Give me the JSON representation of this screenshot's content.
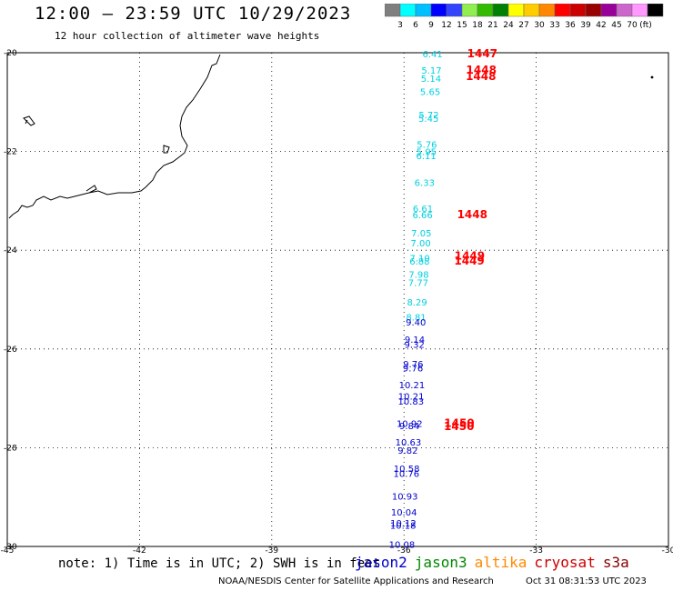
{
  "title": "12:00 – 23:59 UTC 10/29/2023",
  "subtitle": "12 hour collection of altimeter wave heights",
  "scale": {
    "colors": [
      "#7f7f7f",
      "#00ffff",
      "#00bfff",
      "#0000ff",
      "#3344ff",
      "#90ee50",
      "#33bb00",
      "#008000",
      "#ffff00",
      "#ffcc00",
      "#ff8800",
      "#ff0000",
      "#cc0000",
      "#990000",
      "#990099",
      "#cc66cc",
      "#ff99ff",
      "#000000"
    ],
    "labels": [
      "3",
      "6",
      "9",
      "12",
      "15",
      "18",
      "21",
      "24",
      "27",
      "30",
      "33",
      "36",
      "39",
      "42",
      "45",
      "70",
      "(ft)"
    ]
  },
  "axes": {
    "lat_labels": [
      "-20",
      "-22",
      "-24",
      "-26",
      "-28",
      "-30"
    ],
    "lon_labels": [
      "-45",
      "-42",
      "-39",
      "-36",
      "-33",
      "-30"
    ]
  },
  "observations": [
    {
      "t": "6.41",
      "lat": -20.02,
      "c": "#00d0e0"
    },
    {
      "t": "1447",
      "lat": -20.02,
      "c": "#ff0000",
      "col": "r"
    },
    {
      "t": "5.17",
      "lat": -20.35,
      "c": "#00d0e0"
    },
    {
      "t": "1448",
      "lat": -20.35,
      "c": "#ff0000",
      "col": "r"
    },
    {
      "t": "5.14",
      "lat": -20.52,
      "c": "#00d0e0"
    },
    {
      "t": "1448",
      "lat": -20.48,
      "c": "#ff0000",
      "col": "r"
    },
    {
      "t": "5.65",
      "lat": -20.78,
      "c": "#00d0e0"
    },
    {
      "t": "5.72",
      "lat": -21.25,
      "c": "#00d0e0"
    },
    {
      "t": "5.45",
      "lat": -21.33,
      "c": "#00d0e0"
    },
    {
      "t": "5.76",
      "lat": -21.85,
      "c": "#00d0e0"
    },
    {
      "t": "5.95",
      "lat": -22.0,
      "c": "#00d0e0"
    },
    {
      "t": "6.11",
      "lat": -22.08,
      "c": "#00d0e0"
    },
    {
      "t": "6.33",
      "lat": -22.62,
      "c": "#00d0e0"
    },
    {
      "t": "6.61",
      "lat": -23.15,
      "c": "#00d0e0"
    },
    {
      "t": "6.66",
      "lat": -23.28,
      "c": "#00d0e0"
    },
    {
      "t": "1448",
      "lat": -23.28,
      "c": "#ff0000",
      "col": "r"
    },
    {
      "t": "7.05",
      "lat": -23.65,
      "c": "#00d0e0"
    },
    {
      "t": "7.00",
      "lat": -23.85,
      "c": "#00d0e0"
    },
    {
      "t": "7.10",
      "lat": -24.15,
      "c": "#00d0e0"
    },
    {
      "t": "1449",
      "lat": -24.12,
      "c": "#ff0000",
      "col": "r"
    },
    {
      "t": "6.88",
      "lat": -24.22,
      "c": "#00d0e0"
    },
    {
      "t": "1449",
      "lat": -24.22,
      "c": "#ff0000",
      "col": "r"
    },
    {
      "t": "7.98",
      "lat": -24.48,
      "c": "#00d0e0"
    },
    {
      "t": "7.77",
      "lat": -24.65,
      "c": "#00d0e0"
    },
    {
      "t": "8.29",
      "lat": -25.05,
      "c": "#00d0e0"
    },
    {
      "t": "8.81",
      "lat": -25.35,
      "c": "#00d0e0"
    },
    {
      "t": "9.40",
      "lat": -25.45,
      "c": "#0000d0"
    },
    {
      "t": "9.14",
      "lat": -25.8,
      "c": "#0000d0"
    },
    {
      "t": "9.32",
      "lat": -25.9,
      "c": "#0000d0"
    },
    {
      "t": "9.76",
      "lat": -26.3,
      "c": "#0000d0"
    },
    {
      "t": "9.76",
      "lat": -26.38,
      "c": "#0000d0"
    },
    {
      "t": "10.21",
      "lat": -26.72,
      "c": "#0000d0"
    },
    {
      "t": "10.21",
      "lat": -26.95,
      "c": "#0000d0"
    },
    {
      "t": "10.83",
      "lat": -27.05,
      "c": "#0000d0"
    },
    {
      "t": "10.92",
      "lat": -27.5,
      "c": "#0000d0"
    },
    {
      "t": "1450",
      "lat": -27.5,
      "c": "#ff0000",
      "col": "r"
    },
    {
      "t": "9.84",
      "lat": -27.55,
      "c": "#0000d0"
    },
    {
      "t": "1450",
      "lat": -27.57,
      "c": "#ff0000",
      "col": "r"
    },
    {
      "t": "10.63",
      "lat": -27.88,
      "c": "#0000d0"
    },
    {
      "t": "9.82",
      "lat": -28.05,
      "c": "#0000d0"
    },
    {
      "t": "10.58",
      "lat": -28.42,
      "c": "#0000d0"
    },
    {
      "t": "10.76",
      "lat": -28.52,
      "c": "#0000d0"
    },
    {
      "t": "10.93",
      "lat": -28.98,
      "c": "#0000d0"
    },
    {
      "t": "10.04",
      "lat": -29.3,
      "c": "#0000d0"
    },
    {
      "t": "10.12",
      "lat": -29.52,
      "c": "#0000d0"
    },
    {
      "t": "10.18",
      "lat": -29.57,
      "c": "#0000d0"
    },
    {
      "t": "10.08",
      "lat": -29.95,
      "c": "#0000d0"
    }
  ],
  "note": "note: 1) Time is in UTC; 2) SWH is in feet",
  "satellites": [
    {
      "name": "jason2",
      "color": "#0000cc"
    },
    {
      "name": "jason3",
      "color": "#008800"
    },
    {
      "name": "altika",
      "color": "#ff8800"
    },
    {
      "name": "cryosat",
      "color": "#cc0000"
    },
    {
      "name": "s3a",
      "color": "#880000"
    }
  ],
  "credit": "NOAA/NESDIS Center for Satellite Applications and Research",
  "timestamp": "Oct 31 08:31:53 UTC 2023"
}
